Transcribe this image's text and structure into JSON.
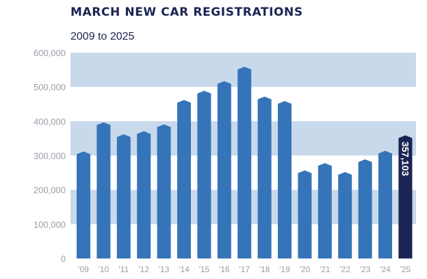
{
  "chart_data": {
    "type": "bar",
    "title": "MARCH NEW CAR REGISTRATIONS",
    "subtitle": "2009 to 2025",
    "xlabel": "",
    "ylabel": "",
    "ylim": [
      0,
      600000
    ],
    "yticks": [
      0,
      100000,
      200000,
      300000,
      400000,
      500000,
      600000
    ],
    "ytick_labels": [
      "0",
      "100,000",
      "200,000",
      "300,000",
      "400,000",
      "500,000",
      "600,000"
    ],
    "categories": [
      "'09",
      "'10",
      "'11",
      "'12",
      "'13",
      "'14",
      "'15",
      "'16",
      "'17",
      "'18",
      "'19",
      "'20",
      "'21",
      "'22",
      "'23",
      "'24",
      "'25"
    ],
    "values": [
      310000,
      395000,
      360000,
      369000,
      389000,
      460000,
      487000,
      515000,
      557000,
      470000,
      457000,
      255000,
      276000,
      250000,
      287000,
      312000,
      357103
    ],
    "highlight_index": 16,
    "data_labels": [
      {
        "index": 16,
        "text": "357,103"
      }
    ],
    "colors": {
      "bar": "#3674b9",
      "highlight": "#1b2452",
      "band": "#c9d9ec",
      "axis_text": "#9a9da8",
      "title": "#1b2452"
    },
    "grid": "alternating-bands",
    "legend": "none"
  }
}
